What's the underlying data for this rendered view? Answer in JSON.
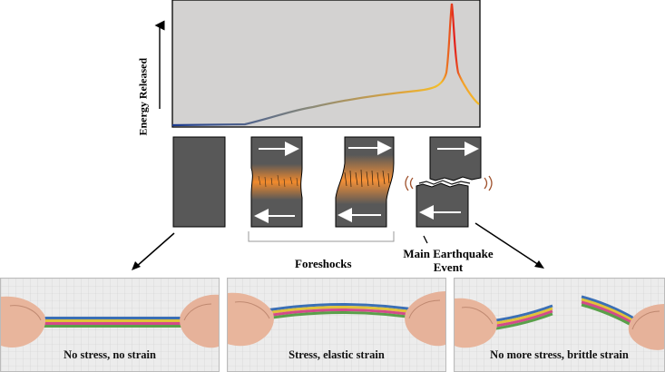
{
  "y_axis_label": "Energy   Released",
  "chart_data": {
    "type": "line",
    "title": "",
    "xlabel": "",
    "ylabel": "Energy Released",
    "x_ticks": false,
    "y_ticks": false,
    "grid": false,
    "background": "#d3d2d1",
    "gradient_colors": [
      "#1a3a8f",
      "#8a8a80",
      "#e0a53a",
      "#f3bf2a",
      "#e21a1a"
    ],
    "shape": "energy stays near zero, rises slowly through foreshocks, then a sharp spike at the main earthquake event and a quick drop"
  },
  "blocks": [
    {
      "state": "unstressed",
      "arrows": false
    },
    {
      "state": "foreshock-1",
      "arrows": true
    },
    {
      "state": "foreshock-2",
      "arrows": true
    },
    {
      "state": "ruptured",
      "arrows": true
    }
  ],
  "labels": {
    "foreshocks": "Foreshocks",
    "main_event_line1": "Main Earthquake",
    "main_event_line2": "Event"
  },
  "photos": [
    {
      "caption": "No stress, no strain"
    },
    {
      "caption": "Stress, elastic strain"
    },
    {
      "caption": "No more stress, brittle strain"
    }
  ],
  "colors": {
    "block": "#585858",
    "strain_glow": "#f28a2c",
    "arrow": "#ffffff",
    "grid_paper": "#ececec"
  }
}
